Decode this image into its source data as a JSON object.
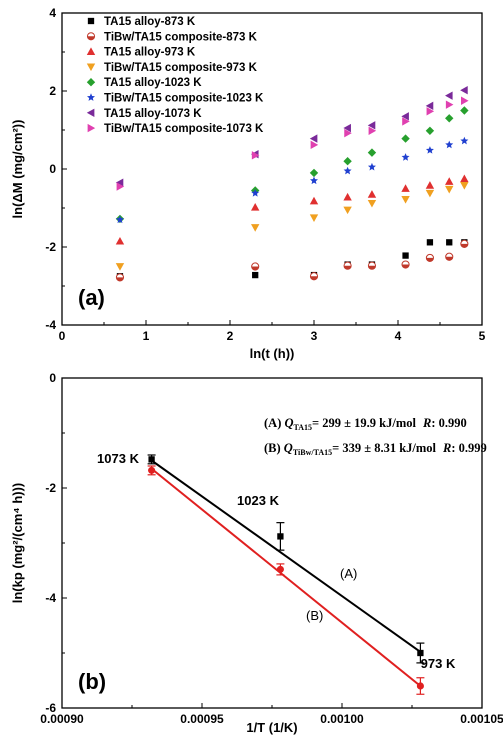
{
  "chart_data": [
    {
      "type": "scatter",
      "panel_label": "(a)",
      "ylabel": "ln(ΔM (mg/cm²))",
      "xlabel": "ln(t (h))",
      "xlim": [
        0,
        5
      ],
      "ylim": [
        -4,
        4
      ],
      "xticks": [
        "0",
        "1",
        "2",
        "3",
        "4",
        "5"
      ],
      "yticks": [
        "-4",
        "-2",
        "0",
        "2",
        "4"
      ],
      "series": [
        {
          "name": "TA15 alloy-873 K",
          "color": "#000000",
          "marker": "square",
          "x": [
            0.69,
            2.3,
            3.0,
            3.4,
            3.69,
            4.09,
            4.38,
            4.61,
            4.79
          ],
          "y": [
            -2.75,
            -2.72,
            -2.72,
            -2.45,
            -2.45,
            -2.22,
            -1.88,
            -1.88,
            -1.88
          ]
        },
        {
          "name": "TiBw/TA15 composite-873 K",
          "color": "#c0392b",
          "marker": "half-circle",
          "x": [
            0.69,
            2.3,
            3.0,
            3.4,
            3.69,
            4.09,
            4.38,
            4.61,
            4.79
          ],
          "y": [
            -2.78,
            -2.5,
            -2.75,
            -2.48,
            -2.48,
            -2.45,
            -2.28,
            -2.25,
            -1.92
          ]
        },
        {
          "name": "TA15 alloy-973 K",
          "color": "#e03030",
          "marker": "triangle-up",
          "x": [
            0.69,
            2.3,
            3.0,
            3.4,
            3.69,
            4.09,
            4.38,
            4.61,
            4.79
          ],
          "y": [
            -1.85,
            -0.98,
            -0.82,
            -0.72,
            -0.65,
            -0.5,
            -0.42,
            -0.32,
            -0.25
          ]
        },
        {
          "name": "TiBw/TA15 composite-973 K",
          "color": "#f0a020",
          "marker": "triangle-down",
          "x": [
            0.69,
            2.3,
            3.0,
            3.4,
            3.69,
            4.09,
            4.38,
            4.61,
            4.79
          ],
          "y": [
            -2.5,
            -1.5,
            -1.25,
            -1.05,
            -0.88,
            -0.78,
            -0.62,
            -0.52,
            -0.42
          ]
        },
        {
          "name": "TA15 alloy-1023 K",
          "color": "#27a02e",
          "marker": "diamond",
          "x": [
            0.69,
            2.3,
            3.0,
            3.4,
            3.69,
            4.09,
            4.38,
            4.61,
            4.79
          ],
          "y": [
            -1.28,
            -0.55,
            -0.1,
            0.2,
            0.42,
            0.78,
            0.98,
            1.3,
            1.5
          ]
        },
        {
          "name": "TiBw/TA15 composite-1023 K",
          "color": "#2040d0",
          "marker": "star",
          "x": [
            0.69,
            2.3,
            3.0,
            3.4,
            3.69,
            4.09,
            4.38,
            4.61,
            4.79
          ],
          "y": [
            -1.3,
            -0.62,
            -0.3,
            -0.05,
            0.05,
            0.3,
            0.48,
            0.62,
            0.72
          ]
        },
        {
          "name": "TA15 alloy-1073 K",
          "color": "#7a2a9a",
          "marker": "triangle-left",
          "x": [
            0.69,
            2.3,
            3.0,
            3.4,
            3.69,
            4.09,
            4.38,
            4.61,
            4.79
          ],
          "y": [
            -0.35,
            0.38,
            0.78,
            1.05,
            1.12,
            1.35,
            1.62,
            1.88,
            2.02
          ]
        },
        {
          "name": "TiBw/TA15 composite-1073 K",
          "color": "#e040b0",
          "marker": "triangle-right",
          "x": [
            0.69,
            2.3,
            3.0,
            3.4,
            3.69,
            4.09,
            4.38,
            4.61,
            4.79
          ],
          "y": [
            -0.45,
            0.35,
            0.62,
            0.92,
            0.98,
            1.22,
            1.48,
            1.65,
            1.75
          ]
        }
      ]
    },
    {
      "type": "line",
      "panel_label": "(b)",
      "ylabel": "ln(kp (mg²/(cm⁴ h)))",
      "xlabel": "1/T (1/K)",
      "xlim": [
        0.0009,
        0.00105
      ],
      "ylim": [
        -6,
        0
      ],
      "xticks": [
        "0.00090",
        "0.00095",
        "0.00100",
        "0.00105"
      ],
      "yticks": [
        "-6",
        "-4",
        "-2",
        "0"
      ],
      "annotation_A": {
        "prefix": "(A) ",
        "sym": "Q",
        "sub": "TA15",
        "text": "= 299 ± 19.9 kJ/mol",
        "r_label": "R",
        "r_value": ":  0.990"
      },
      "annotation_B": {
        "prefix": "(B) ",
        "sym": "Q",
        "sub": "TiBw/TA15",
        "text": "= 339 ± 8.31 kJ/mol",
        "r_label": "R",
        "r_value": ": 0.999"
      },
      "point_labels": [
        "1073 K",
        "1023 K",
        "973 K"
      ],
      "line_labels": [
        "(A)",
        "(B)"
      ],
      "series": [
        {
          "name": "(A)",
          "color": "#000000",
          "marker": "square",
          "x": [
            0.000932,
            0.000978,
            0.001028
          ],
          "y": [
            -1.48,
            -2.88,
            -5.0
          ],
          "err": [
            0.08,
            0.25,
            0.18
          ],
          "fit": [
            [
              0.000932,
              -1.5
            ],
            [
              0.001028,
              -4.98
            ]
          ]
        },
        {
          "name": "(B)",
          "color": "#e02020",
          "marker": "circle",
          "x": [
            0.000932,
            0.000978,
            0.001028
          ],
          "y": [
            -1.68,
            -3.48,
            -5.6
          ],
          "err": [
            0.08,
            0.1,
            0.15
          ],
          "fit": [
            [
              0.000932,
              -1.65
            ],
            [
              0.001028,
              -5.6
            ]
          ]
        }
      ]
    }
  ]
}
